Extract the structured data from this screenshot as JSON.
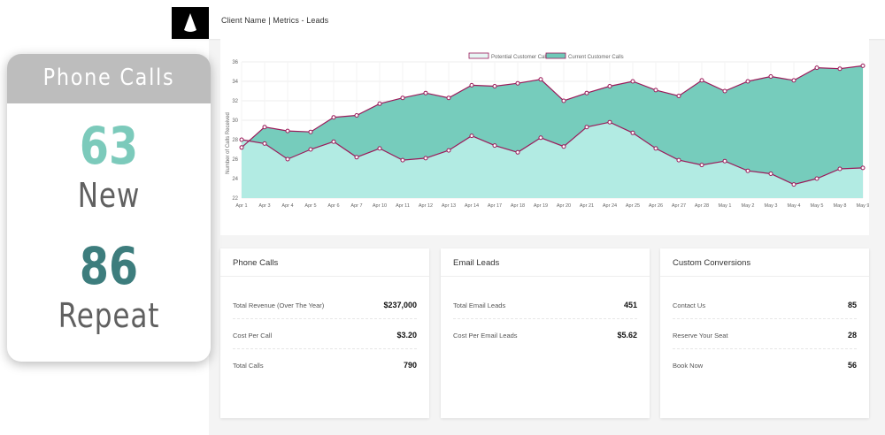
{
  "header": {
    "breadcrumb": "Client Name | Metrics - Leads"
  },
  "colors": {
    "potential_fill": "#b2ebe3",
    "current_fill": "#6fc9b8",
    "line": "#9b1a5a",
    "new_accent": "#7ccabb",
    "repeat_accent": "#3d7d7d"
  },
  "chart_data": {
    "type": "area",
    "title": "",
    "ylabel": "Number of Calls Received",
    "ylim": [
      22,
      36
    ],
    "y_ticks": [
      22,
      24,
      26,
      28,
      30,
      32,
      34,
      36
    ],
    "grid": true,
    "legend_position": "top",
    "x": [
      "Apr 1",
      "Apr 3",
      "Apr 4",
      "Apr 5",
      "Apr 6",
      "Apr 7",
      "Apr 10",
      "Apr 11",
      "Apr 12",
      "Apr 13",
      "Apr 14",
      "Apr 17",
      "Apr 18",
      "Apr 19",
      "Apr 20",
      "Apr 21",
      "Apr 24",
      "Apr 25",
      "Apr 26",
      "Apr 27",
      "Apr 28",
      "May 1",
      "May 2",
      "May 3",
      "May 4",
      "May 5",
      "May 8",
      "May 9"
    ],
    "series": [
      {
        "name": "Potential Customer Calls",
        "values": [
          28.0,
          27.6,
          26.0,
          27.0,
          27.8,
          26.2,
          27.1,
          25.9,
          26.1,
          26.9,
          28.4,
          27.4,
          26.7,
          28.2,
          27.3,
          29.3,
          29.8,
          28.7,
          27.1,
          25.9,
          25.4,
          25.8,
          24.8,
          24.5,
          23.4,
          24.0,
          25.0,
          25.1
        ]
      },
      {
        "name": "Current Customer Calls",
        "values": [
          27.2,
          29.3,
          28.9,
          28.8,
          30.3,
          30.5,
          31.7,
          32.3,
          32.8,
          32.3,
          33.6,
          33.5,
          33.8,
          34.2,
          32.0,
          32.8,
          33.5,
          34.0,
          33.1,
          32.5,
          34.1,
          33.0,
          34.0,
          34.5,
          34.1,
          35.4,
          35.3,
          35.6
        ]
      }
    ]
  },
  "cards": [
    {
      "title": "Phone Calls",
      "rows": [
        {
          "label": "Total Revenue (Over The Year)",
          "value": "$237,000"
        },
        {
          "label": "Cost Per Call",
          "value": "$3.20"
        },
        {
          "label": "Total Calls",
          "value": "790"
        }
      ]
    },
    {
      "title": "Email Leads",
      "rows": [
        {
          "label": "Total Email Leads",
          "value": "451"
        },
        {
          "label": "Cost Per Email Leads",
          "value": "$5.62"
        }
      ]
    },
    {
      "title": "Custom Conversions",
      "rows": [
        {
          "label": "Contact Us",
          "value": "85"
        },
        {
          "label": "Reserve Your Seat",
          "value": "28"
        },
        {
          "label": "Book Now",
          "value": "56"
        }
      ]
    }
  ],
  "overlay": {
    "title": "Phone Calls",
    "new_count": "63",
    "new_label": "New",
    "repeat_count": "86",
    "repeat_label": "Repeat"
  },
  "icons": {
    "logo": "drop-logo-icon"
  }
}
